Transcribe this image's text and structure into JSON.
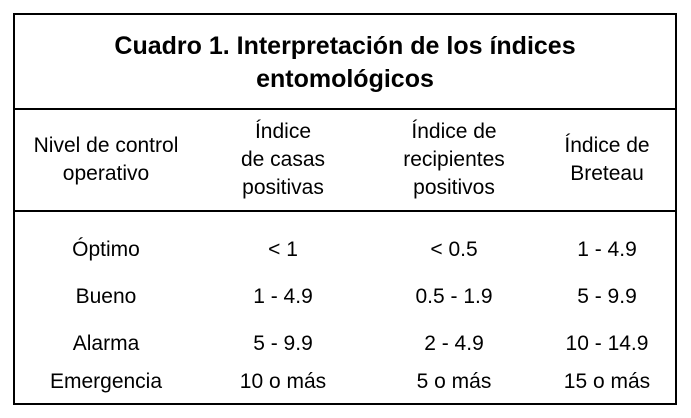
{
  "table": {
    "title_lines": [
      "Cuadro 1. Interpretación de los índices",
      "entomológicos"
    ],
    "headers": [
      [
        "Nivel de control",
        "operativo"
      ],
      [
        "Índice",
        "de casas",
        "positivas"
      ],
      [
        "Índice de",
        "recipientes",
        "positivos"
      ],
      [
        "Índice de",
        "Breteau"
      ]
    ],
    "rows": [
      [
        "Óptimo",
        "< 1",
        "< 0.5",
        "1 - 4.9"
      ],
      [
        "Bueno",
        "1 - 4.9",
        "0.5 - 1.9",
        "5 - 9.9"
      ],
      [
        "Alarma",
        "5 - 9.9",
        "2 - 4.9",
        "10 - 14.9"
      ],
      [
        "Emergencia",
        "10 o más",
        "5 o más",
        "15 o más"
      ]
    ]
  }
}
